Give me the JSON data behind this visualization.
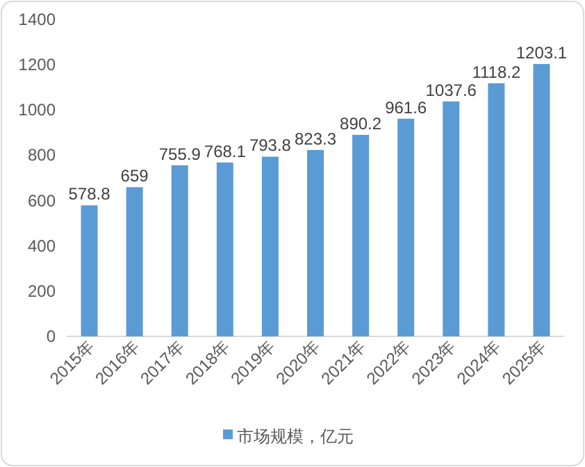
{
  "chart_data": {
    "type": "bar",
    "categories": [
      "2015年",
      "2016年",
      "2017年",
      "2018年",
      "2019年",
      "2020年",
      "2021年",
      "2022年",
      "2023年",
      "2024年",
      "2025年"
    ],
    "series": [
      {
        "name": "市场规模，亿元",
        "color": "#5b9bd5",
        "values": [
          578.8,
          659,
          755.9,
          768.1,
          793.8,
          823.3,
          890.2,
          961.6,
          1037.6,
          1118.2,
          1203.1
        ]
      }
    ],
    "ylim": [
      0,
      1400
    ],
    "yticks": [
      0,
      200,
      400,
      600,
      800,
      1000,
      1200,
      1400
    ],
    "data_labels": true,
    "legend": "bottom",
    "grid": false
  }
}
